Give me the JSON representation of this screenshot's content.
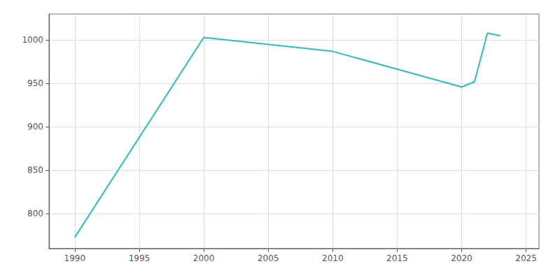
{
  "chart_data": {
    "type": "line",
    "x": [
      1990,
      2000,
      2010,
      2020,
      2021,
      2022,
      2023
    ],
    "values": [
      773,
      1003,
      987,
      946,
      952,
      1008,
      1005
    ],
    "color": "#2abfbf",
    "xlim": [
      1988,
      2026
    ],
    "xticks": [
      1990,
      1995,
      2000,
      2005,
      2010,
      2015,
      2020,
      2025
    ],
    "ylim": [
      760,
      1030
    ],
    "yticks": [
      800,
      850,
      900,
      950,
      1000
    ],
    "grid": true
  }
}
